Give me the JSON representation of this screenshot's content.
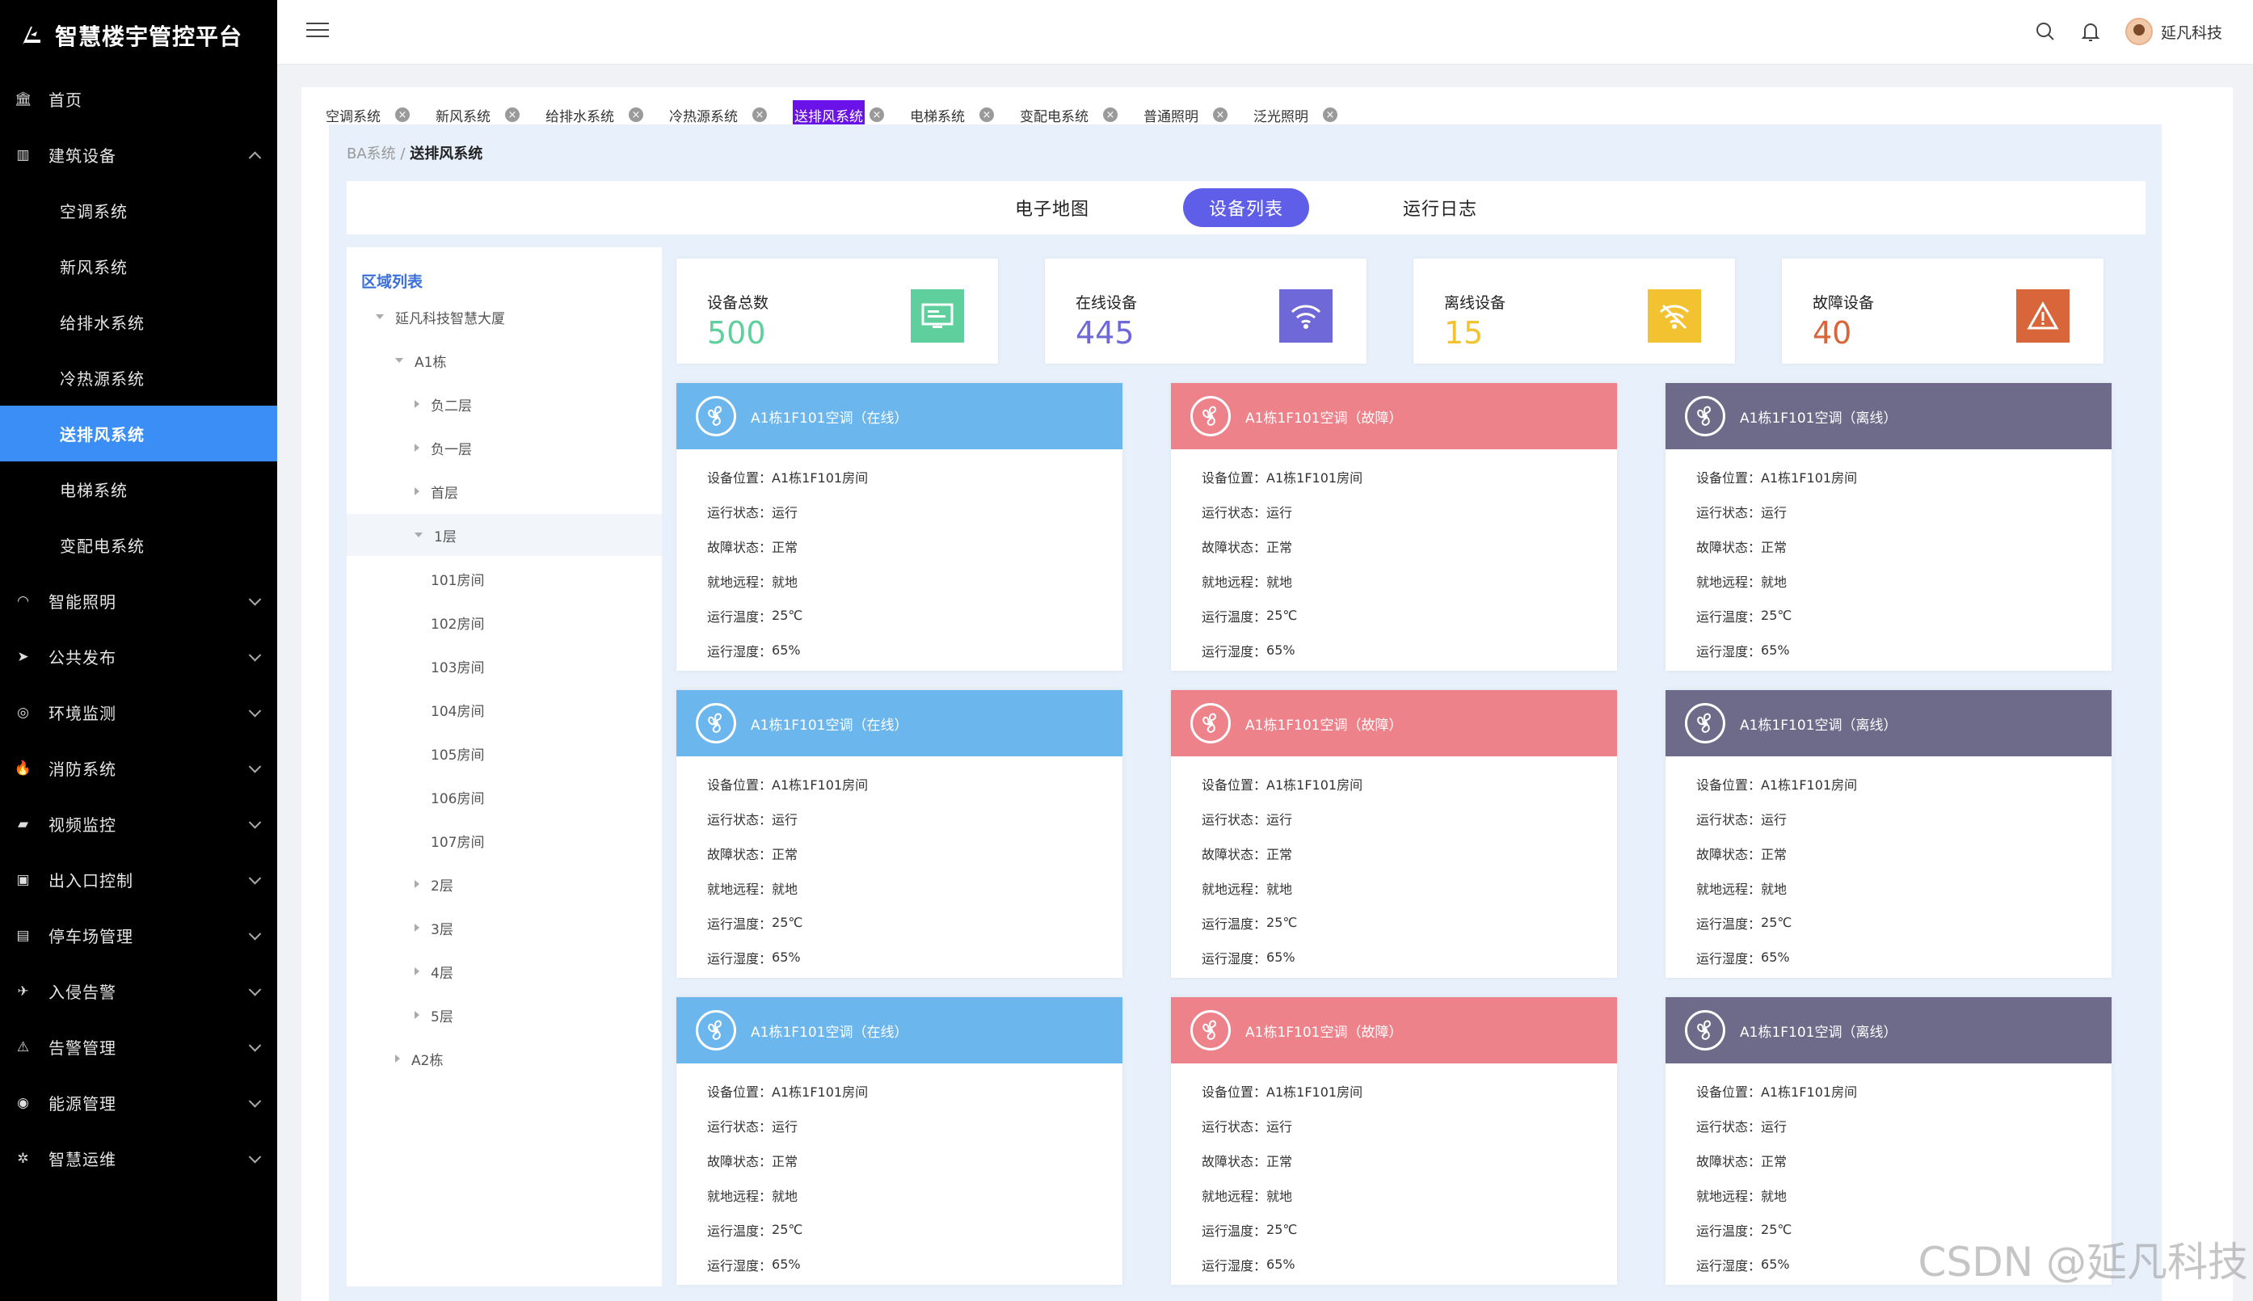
{
  "app": {
    "title": "智慧楼宇管控平台"
  },
  "sidebar": {
    "items": [
      {
        "label": "首页",
        "icon": "bank-icon",
        "glyph": "🏛",
        "expandable": false
      },
      {
        "label": "建筑设备",
        "icon": "building-icon",
        "glyph": "▥",
        "expandable": true,
        "expanded": true
      },
      {
        "label": "智能照明",
        "icon": "lamp-icon",
        "glyph": "◠",
        "expandable": true
      },
      {
        "label": "公共发布",
        "icon": "send-icon",
        "glyph": "➤",
        "expandable": true
      },
      {
        "label": "环境监测",
        "icon": "target-icon",
        "glyph": "◎",
        "expandable": true
      },
      {
        "label": "消防系统",
        "icon": "flame-icon",
        "glyph": "🔥",
        "expandable": true
      },
      {
        "label": "视频监控",
        "icon": "camera-icon",
        "glyph": "▰",
        "expandable": true
      },
      {
        "label": "出入口控制",
        "icon": "door-icon",
        "glyph": "▣",
        "expandable": true
      },
      {
        "label": "停车场管理",
        "icon": "parking-icon",
        "glyph": "▤",
        "expandable": true
      },
      {
        "label": "入侵告警",
        "icon": "runner-icon",
        "glyph": "✈",
        "expandable": true
      },
      {
        "label": "告警管理",
        "icon": "alarm-icon",
        "glyph": "⚠",
        "expandable": true
      },
      {
        "label": "能源管理",
        "icon": "energy-icon",
        "glyph": "◉",
        "expandable": true
      },
      {
        "label": "智慧运维",
        "icon": "gear-icon",
        "glyph": "✲",
        "expandable": true
      }
    ],
    "sub_items": [
      "空调系统",
      "新风系统",
      "给排水系统",
      "冷热源系统",
      "送排风系统",
      "电梯系统",
      "变配电系统"
    ],
    "active_sub": "送排风系统"
  },
  "header": {
    "user": "延凡科技"
  },
  "tabs": [
    "空调系统",
    "新风系统",
    "给排水系统",
    "冷热源系统",
    "送排风系统",
    "电梯系统",
    "变配电系统",
    "普通照明",
    "泛光照明"
  ],
  "active_tab": "送排风系统",
  "breadcrumb": {
    "parent": "BA系统",
    "sep": "/",
    "current": "送排风系统"
  },
  "view_tabs": [
    "电子地图",
    "设备列表",
    "运行日志"
  ],
  "active_view": "设备列表",
  "region": {
    "title": "区域列表",
    "tree": [
      {
        "label": "延凡科技智慧大厦",
        "level": 0,
        "caret": "open"
      },
      {
        "label": "A1栋",
        "level": 1,
        "caret": "open"
      },
      {
        "label": "负二层",
        "level": 2,
        "caret": "closed"
      },
      {
        "label": "负一层",
        "level": 2,
        "caret": "closed"
      },
      {
        "label": "首层",
        "level": 2,
        "caret": "closed"
      },
      {
        "label": "1层",
        "level": 2,
        "caret": "open",
        "selected": true
      },
      {
        "label": "101房间",
        "level": 3,
        "caret": "none"
      },
      {
        "label": "102房间",
        "level": 3,
        "caret": "none"
      },
      {
        "label": "103房间",
        "level": 3,
        "caret": "none"
      },
      {
        "label": "104房间",
        "level": 3,
        "caret": "none"
      },
      {
        "label": "105房间",
        "level": 3,
        "caret": "none"
      },
      {
        "label": "106房间",
        "level": 3,
        "caret": "none"
      },
      {
        "label": "107房间",
        "level": 3,
        "caret": "none"
      },
      {
        "label": "2层",
        "level": 2,
        "caret": "closed"
      },
      {
        "label": "3层",
        "level": 2,
        "caret": "closed"
      },
      {
        "label": "4层",
        "level": 2,
        "caret": "closed"
      },
      {
        "label": "5层",
        "level": 2,
        "caret": "closed"
      },
      {
        "label": "A2栋",
        "level": 1,
        "caret": "closed"
      }
    ]
  },
  "stats": [
    {
      "label": "设备总数",
      "value": "500",
      "color": "#5fcf9d",
      "icon": "monitor-icon"
    },
    {
      "label": "在线设备",
      "value": "445",
      "color": "#6f68d8",
      "icon": "wifi-icon"
    },
    {
      "label": "离线设备",
      "value": "15",
      "color": "#f2c230",
      "icon": "wifi-off-icon"
    },
    {
      "label": "故障设备",
      "value": "40",
      "color": "#d9653a",
      "icon": "warning-icon"
    }
  ],
  "colors": {
    "online": "#6cb6ee",
    "fault": "#ee828a",
    "offline": "#6d6a8a",
    "accent": "#5f5ee8",
    "active": "#3a8ef6"
  },
  "card_fields": {
    "location_label": "设备位置：",
    "run_status_label": "运行状态：",
    "fault_status_label": "故障状态：",
    "local_remote_label": "就地远程：",
    "temp_label": "运行温度：",
    "humidity_label": "运行湿度："
  },
  "devices": [
    {
      "title": "A1栋1F101空调（在线）",
      "status": "online",
      "location": "A1栋1F101房间",
      "run_status": "运行",
      "fault_status": "正常",
      "local_remote": "就地",
      "temp": "25℃",
      "humidity": "65%"
    },
    {
      "title": "A1栋1F101空调（故障）",
      "status": "fault",
      "location": "A1栋1F101房间",
      "run_status": "运行",
      "fault_status": "正常",
      "local_remote": "就地",
      "temp": "25℃",
      "humidity": "65%"
    },
    {
      "title": "A1栋1F101空调（离线）",
      "status": "offline",
      "location": "A1栋1F101房间",
      "run_status": "运行",
      "fault_status": "正常",
      "local_remote": "就地",
      "temp": "25℃",
      "humidity": "65%"
    },
    {
      "title": "A1栋1F101空调（在线）",
      "status": "online",
      "location": "A1栋1F101房间",
      "run_status": "运行",
      "fault_status": "正常",
      "local_remote": "就地",
      "temp": "25℃",
      "humidity": "65%"
    },
    {
      "title": "A1栋1F101空调（故障）",
      "status": "fault",
      "location": "A1栋1F101房间",
      "run_status": "运行",
      "fault_status": "正常",
      "local_remote": "就地",
      "temp": "25℃",
      "humidity": "65%"
    },
    {
      "title": "A1栋1F101空调（离线）",
      "status": "offline",
      "location": "A1栋1F101房间",
      "run_status": "运行",
      "fault_status": "正常",
      "local_remote": "就地",
      "temp": "25℃",
      "humidity": "65%"
    },
    {
      "title": "A1栋1F101空调（在线）",
      "status": "online",
      "location": "A1栋1F101房间",
      "run_status": "运行",
      "fault_status": "正常",
      "local_remote": "就地",
      "temp": "25℃",
      "humidity": "65%"
    },
    {
      "title": "A1栋1F101空调（故障）",
      "status": "fault",
      "location": "A1栋1F101房间",
      "run_status": "运行",
      "fault_status": "正常",
      "local_remote": "就地",
      "temp": "25℃",
      "humidity": "65%"
    },
    {
      "title": "A1栋1F101空调（离线）",
      "status": "offline",
      "location": "A1栋1F101房间",
      "run_status": "运行",
      "fault_status": "正常",
      "local_remote": "就地",
      "temp": "25℃",
      "humidity": "65%"
    }
  ],
  "watermark": "CSDN @延凡科技"
}
